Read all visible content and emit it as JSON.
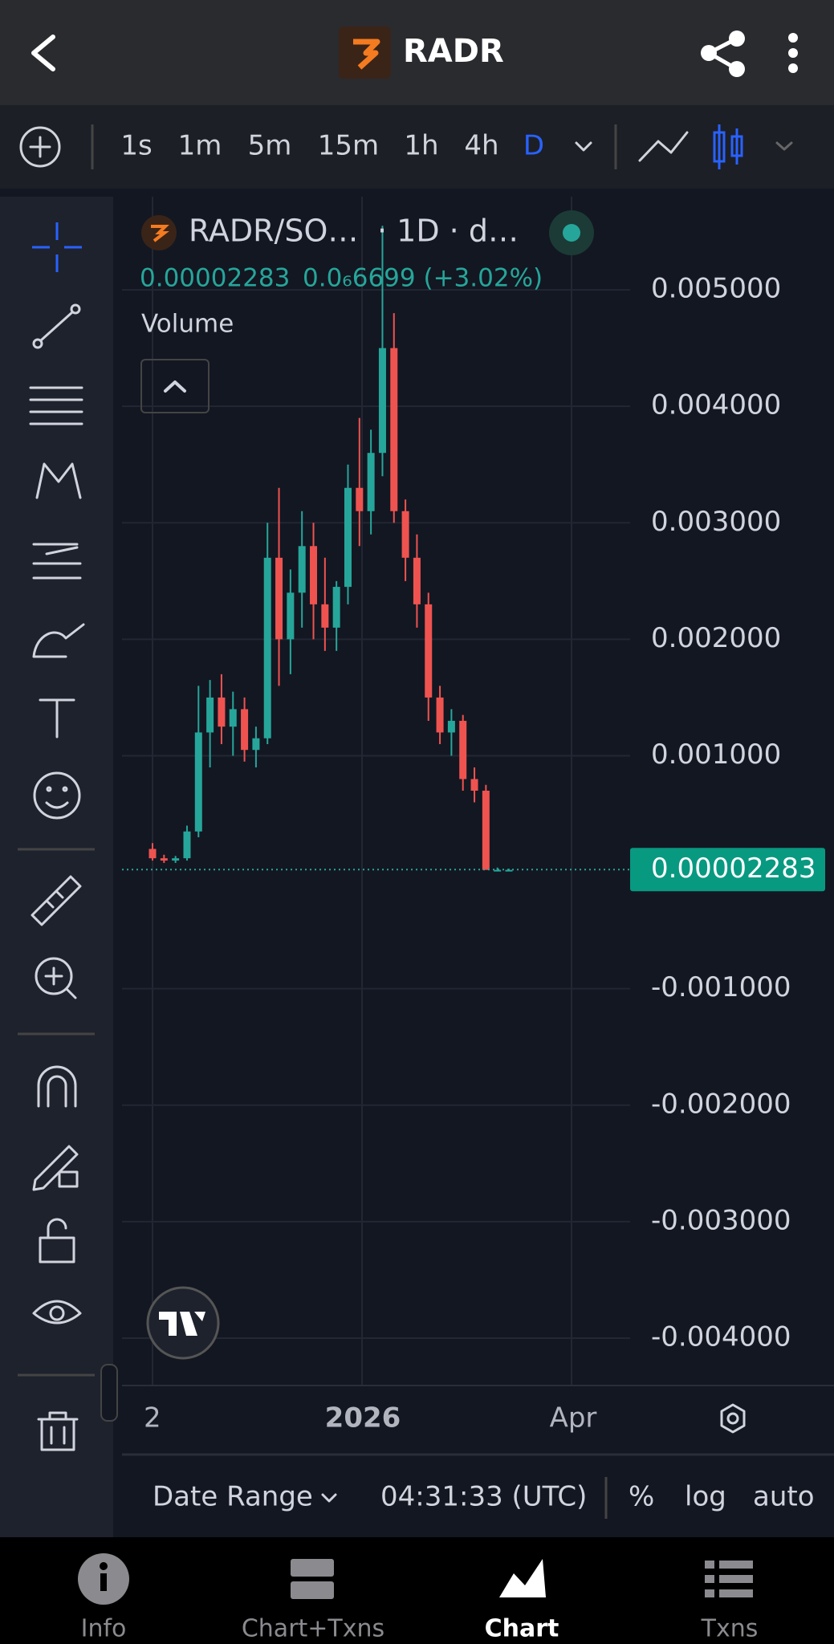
{
  "header": {
    "title": "RADR"
  },
  "toolbar": {
    "intervals": [
      "1s",
      "1m",
      "5m",
      "15m",
      "1h",
      "4h",
      "D"
    ]
  },
  "chart_data": {
    "type": "candlestick",
    "symbol": "RADR/SO…",
    "interval_label": "· 1D · d…",
    "last_value": 2.283e-05,
    "change": "0.0₆6699 (+3.02%)",
    "indicator": "Volume",
    "open": [
      0.0002,
      0.00012,
      0.0001,
      0.00012,
      0.00035,
      0.0012,
      0.0015,
      0.00125,
      0.0014,
      0.00105,
      0.00115,
      0.0027,
      0.002,
      0.0024,
      0.0028,
      0.0023,
      0.0021,
      0.00245,
      0.0033,
      0.0031,
      0.0036,
      0.0045,
      0.0031,
      0.0027,
      0.0023,
      0.0015,
      0.0012,
      0.0013,
      0.0008,
      0.0007,
      2e-05,
      2e-05
    ],
    "high": [
      0.00025,
      0.00015,
      0.00014,
      0.0004,
      0.0016,
      0.00165,
      0.0017,
      0.00155,
      0.0015,
      0.00125,
      0.003,
      0.0033,
      0.0026,
      0.0031,
      0.003,
      0.0027,
      0.0025,
      0.0035,
      0.0039,
      0.0038,
      0.00555,
      0.0048,
      0.0032,
      0.0029,
      0.0024,
      0.0016,
      0.0014,
      0.00135,
      0.0009,
      0.00075,
      4e-05,
      3e-05
    ],
    "low": [
      0.0001,
      8e-05,
      8e-05,
      0.0001,
      0.0003,
      0.0009,
      0.0011,
      0.001,
      0.00095,
      0.0009,
      0.0011,
      0.0016,
      0.0017,
      0.0021,
      0.002,
      0.0019,
      0.0019,
      0.0023,
      0.0028,
      0.0029,
      0.0034,
      0.003,
      0.0025,
      0.0021,
      0.0013,
      0.0011,
      0.001,
      0.0007,
      0.0006,
      0.0001,
      1e-05,
      2e-05
    ],
    "close": [
      0.00012,
      0.0001,
      0.00012,
      0.00035,
      0.0012,
      0.0015,
      0.00125,
      0.0014,
      0.00105,
      0.00115,
      0.0027,
      0.002,
      0.0024,
      0.0028,
      0.0023,
      0.0021,
      0.00245,
      0.0033,
      0.0031,
      0.0036,
      0.0045,
      0.0031,
      0.0027,
      0.0023,
      0.0015,
      0.0012,
      0.0013,
      0.0008,
      0.0007,
      2e-05,
      2e-05,
      2e-05
    ],
    "up_color": "#26a69a",
    "down_color": "#ef5350",
    "ylim": [
      -0.0044,
      0.0058
    ],
    "yticks": [
      {
        "value": 0.005,
        "label": "0.005000"
      },
      {
        "value": 0.004,
        "label": "0.004000"
      },
      {
        "value": 0.003,
        "label": "0.003000"
      },
      {
        "value": 0.002,
        "label": "0.002000"
      },
      {
        "value": 0.001,
        "label": "0.001000"
      },
      {
        "value": -0.001,
        "label": "-0.001000"
      },
      {
        "value": -0.002,
        "label": "-0.002000"
      },
      {
        "value": -0.003,
        "label": "-0.003000"
      },
      {
        "value": -0.004,
        "label": "-0.004000"
      }
    ],
    "x_labels": [
      "2",
      "2026",
      "Apr"
    ],
    "grid": true
  },
  "footer": {
    "date_range": "Date Range",
    "time": "04:31:33 (UTC)",
    "options": [
      "%",
      "log",
      "auto"
    ]
  },
  "nav": [
    "Info",
    "Chart+Txns",
    "Chart",
    "Txns"
  ]
}
